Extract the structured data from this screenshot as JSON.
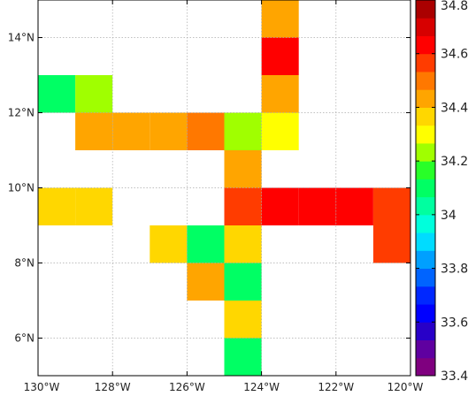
{
  "chart_data": {
    "type": "heatmap",
    "title": "",
    "xlabel": "",
    "ylabel": "",
    "xlim": [
      130,
      120
    ],
    "ylim": [
      5,
      15
    ],
    "cell_size_deg": 1,
    "grid": true,
    "x_ticks": [
      {
        "value": 130,
        "label": "130°W"
      },
      {
        "value": 128,
        "label": "128°W"
      },
      {
        "value": 126,
        "label": "126°W"
      },
      {
        "value": 124,
        "label": "124°W"
      },
      {
        "value": 122,
        "label": "122°W"
      },
      {
        "value": 120,
        "label": "120°W"
      }
    ],
    "y_ticks": [
      {
        "value": 6,
        "label": "6°N"
      },
      {
        "value": 8,
        "label": "8°N"
      },
      {
        "value": 10,
        "label": "10°N"
      },
      {
        "value": 12,
        "label": "12°N"
      },
      {
        "value": 14,
        "label": "14°N"
      }
    ],
    "colorbar": {
      "min": 33.4,
      "max": 34.8,
      "placement": "right",
      "ticks": [
        {
          "value": 33.4,
          "label": "33.4"
        },
        {
          "value": 33.6,
          "label": "33.6"
        },
        {
          "value": 33.8,
          "label": "33.8"
        },
        {
          "value": 34.0,
          "label": "34"
        },
        {
          "value": 34.2,
          "label": "34.2"
        },
        {
          "value": 34.4,
          "label": "34.4"
        },
        {
          "value": 34.6,
          "label": "34.6"
        },
        {
          "value": 34.8,
          "label": "34.8"
        }
      ],
      "colors": [
        "#7f007f",
        "#5f00a0",
        "#2800c8",
        "#0000ff",
        "#0028ff",
        "#0064ff",
        "#00a0ff",
        "#00dcff",
        "#00ffdc",
        "#00ffa0",
        "#00ff64",
        "#28ff28",
        "#a0ff00",
        "#ffff00",
        "#ffd700",
        "#ffa500",
        "#ff7800",
        "#ff3c00",
        "#ff0000",
        "#d70000",
        "#aa0000"
      ]
    },
    "cells": [
      {
        "lon": 124,
        "lat": 14,
        "value": 34.43
      },
      {
        "lon": 124,
        "lat": 13,
        "value": 34.61
      },
      {
        "lon": 130,
        "lat": 12,
        "value": 34.07
      },
      {
        "lon": 129,
        "lat": 12,
        "value": 34.23
      },
      {
        "lon": 124,
        "lat": 12,
        "value": 34.43
      },
      {
        "lon": 129,
        "lat": 11,
        "value": 34.43
      },
      {
        "lon": 128,
        "lat": 11,
        "value": 34.43
      },
      {
        "lon": 127,
        "lat": 11,
        "value": 34.43
      },
      {
        "lon": 126,
        "lat": 11,
        "value": 34.5
      },
      {
        "lon": 125,
        "lat": 11,
        "value": 34.23
      },
      {
        "lon": 124,
        "lat": 11,
        "value": 34.3
      },
      {
        "lon": 125,
        "lat": 10,
        "value": 34.43
      },
      {
        "lon": 130,
        "lat": 9,
        "value": 34.37
      },
      {
        "lon": 129,
        "lat": 9,
        "value": 34.37
      },
      {
        "lon": 125,
        "lat": 9,
        "value": 34.57
      },
      {
        "lon": 124,
        "lat": 9,
        "value": 34.64
      },
      {
        "lon": 123,
        "lat": 9,
        "value": 34.64
      },
      {
        "lon": 122,
        "lat": 9,
        "value": 34.64
      },
      {
        "lon": 121,
        "lat": 9,
        "value": 34.57
      },
      {
        "lon": 127,
        "lat": 8,
        "value": 34.37
      },
      {
        "lon": 126,
        "lat": 8,
        "value": 34.1
      },
      {
        "lon": 125,
        "lat": 8,
        "value": 34.37
      },
      {
        "lon": 121,
        "lat": 8,
        "value": 34.57
      },
      {
        "lon": 126,
        "lat": 7,
        "value": 34.43
      },
      {
        "lon": 125,
        "lat": 7,
        "value": 34.1
      },
      {
        "lon": 125,
        "lat": 6,
        "value": 34.37
      },
      {
        "lon": 125,
        "lat": 5,
        "value": 34.1
      }
    ]
  }
}
